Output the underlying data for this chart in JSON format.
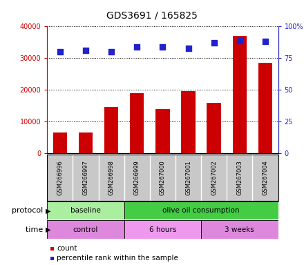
{
  "title": "GDS3691 / 165825",
  "samples": [
    "GSM266996",
    "GSM266997",
    "GSM266998",
    "GSM266999",
    "GSM267000",
    "GSM267001",
    "GSM267002",
    "GSM267003",
    "GSM267004"
  ],
  "counts": [
    6500,
    6500,
    14500,
    19000,
    14000,
    19500,
    16000,
    37000,
    28500
  ],
  "percentile_ranks": [
    80,
    81,
    80,
    84,
    84,
    83,
    87,
    89,
    88
  ],
  "ylim_left": [
    0,
    40000
  ],
  "ylim_right": [
    0,
    100
  ],
  "ytick_labels_left": [
    "0",
    "10000",
    "20000",
    "30000",
    "40000"
  ],
  "ytick_labels_right": [
    "0",
    "25",
    "50",
    "75",
    "100%"
  ],
  "bar_color": "#cc0000",
  "dot_color": "#2222cc",
  "left_axis_color": "#cc0000",
  "right_axis_color": "#2222cc",
  "protocol_groups": [
    {
      "label": "baseline",
      "start": 0,
      "end": 3,
      "color": "#aaeea0"
    },
    {
      "label": "olive oil consumption",
      "start": 3,
      "end": 9,
      "color": "#44cc44"
    }
  ],
  "time_groups": [
    {
      "label": "control",
      "start": 0,
      "end": 3,
      "color": "#dd88dd"
    },
    {
      "label": "6 hours",
      "start": 3,
      "end": 6,
      "color": "#ee99ee"
    },
    {
      "label": "3 weeks",
      "start": 6,
      "end": 9,
      "color": "#dd88dd"
    }
  ],
  "background_color": "#ffffff",
  "sample_bg_color": "#c8c8c8"
}
